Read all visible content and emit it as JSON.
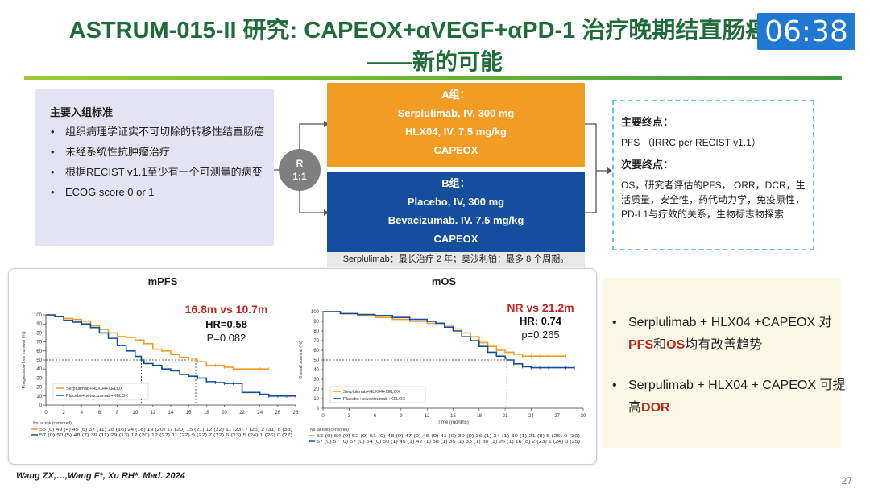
{
  "header": {
    "title_line1": "ASTRUM-015-II 研究: CAPEOX+αVEGF+αPD-1 治疗晚期结直肠癌",
    "title_line2": "——新的可能",
    "timer": "06:38"
  },
  "criteria": {
    "heading": "主要入组标准",
    "items": [
      "组织病理学证实不可切除的转移性结直肠癌",
      "未经系统性抗肿瘤治疗",
      "根据RECIST v1.1至少有一个可测量的病变",
      "ECOG score 0 or 1"
    ]
  },
  "randomization": {
    "line1": "R",
    "line2": "1:1"
  },
  "arm_a": {
    "title": "A组：",
    "lines": [
      "Serplulimab, IV, 300 mg",
      "HLX04, IV, 7.5 mg/kg",
      "CAPEOX"
    ]
  },
  "arm_b": {
    "title": "B组：",
    "lines": [
      "Placebo, IV, 300 mg",
      "Bevacizumab. IV. 7.5 mg/kg",
      "CAPEOX"
    ]
  },
  "arm_note": "Serplulimab：最长治疗 2 年；奥沙利铂：最多 8 个周期。",
  "endpoints": {
    "primary_heading": "主要终点：",
    "primary_text": "PFS （IRRC per RECIST v1.1）",
    "secondary_heading": "次要终点：",
    "secondary_text": "OS，研究者评估的PFS， ORR，DCR，生活质量，安全性，药代动力学，免疫原性，PD-L1与疗效的关系，生物标志物探索"
  },
  "summary": {
    "b1_text": "Serplulimab + HLX04 +CAPEOX 对",
    "b1_red1": "PFS",
    "b1_mid": "和",
    "b1_red2": "OS",
    "b1_tail": "均有改善趋势",
    "b2_text": "Serpulimab + HLX04 + CAPEOX 可提高",
    "b2_red": "DOR"
  },
  "citation": "Wang ZX,…,Wang F*, Xu RH*. Med. 2024",
  "page_number": "27",
  "colors": {
    "orange": "#f39c23",
    "blue": "#144e9c",
    "red": "#c0261f",
    "green": "#1f6b3a"
  },
  "chart_data": [
    {
      "type": "line",
      "title": "mPFS",
      "ylabel": "Progression-free survival (%)",
      "xlabel": "",
      "xlim": [
        0,
        28
      ],
      "ylim": [
        0,
        100
      ],
      "x_ticks": [
        0,
        2,
        4,
        6,
        8,
        10,
        12,
        14,
        16,
        18,
        20,
        22,
        24,
        26,
        28
      ],
      "y_ticks": [
        0,
        10,
        20,
        30,
        40,
        50,
        60,
        70,
        80,
        90,
        100
      ],
      "stats": {
        "headline": "16.8m vs 10.7m",
        "hr": "HR=0.58",
        "p": "P=0.082"
      },
      "median_line": {
        "y": 50,
        "x": [
          10.7,
          16.8
        ]
      },
      "series": [
        {
          "name": "Serplulimab+HLX04+XELOX",
          "color": "#f39c23",
          "x": [
            0,
            1,
            2,
            3,
            4,
            5,
            6,
            7,
            8,
            9,
            10,
            11,
            12,
            13,
            14,
            15,
            16,
            16.8,
            17,
            18,
            19,
            20,
            21,
            22,
            23,
            24,
            25
          ],
          "y": [
            100,
            98,
            96,
            95,
            93,
            88,
            84,
            80,
            76,
            75,
            72,
            68,
            62,
            60,
            56,
            53,
            52,
            50,
            48,
            44,
            44,
            42,
            40,
            40,
            40,
            40,
            40
          ]
        },
        {
          "name": "Placebo+bevacizumab+XELOX",
          "color": "#144e9c",
          "x": [
            0,
            1,
            2,
            3,
            4,
            5,
            6,
            7,
            8,
            9,
            10,
            10.7,
            11,
            12,
            13,
            14,
            15,
            16,
            17,
            18,
            19,
            20,
            21,
            22,
            23,
            24,
            25,
            26,
            27,
            28
          ],
          "y": [
            100,
            98,
            94,
            92,
            90,
            86,
            80,
            74,
            66,
            60,
            54,
            50,
            46,
            44,
            40,
            38,
            34,
            32,
            30,
            26,
            25,
            24,
            24,
            14,
            14,
            12,
            10,
            10,
            10,
            10
          ]
        }
      ],
      "risk_header": "No. at risk (censored)",
      "risk_rows": [
        "55 (0)  49 (4)  45 (6)  37 (11)  28 (16)  24 (18)  19 (20)  17 (20)  15 (21)  12 (22)  11 (23)  7 (26)  2 (31)  8 (33)",
        "57 (0)  50 (5)  48 (7)  39 (11)  29 (13)  17 (20)  12 (22)  11 (22)  9 (22)  7 (22)  6 (23)  5 (24)  1 (26)  0 (27)"
      ]
    },
    {
      "type": "line",
      "title": "mOS",
      "ylabel": "Overall survival (%)",
      "xlabel": "Time (months)",
      "xlim": [
        0,
        30
      ],
      "ylim": [
        0,
        100
      ],
      "x_ticks": [
        0,
        3,
        6,
        9,
        12,
        15,
        18,
        21,
        24,
        27,
        30
      ],
      "y_ticks": [
        0,
        10,
        20,
        30,
        40,
        50,
        60,
        70,
        80,
        90,
        100
      ],
      "stats": {
        "headline": "NR vs 21.2m",
        "hr": "HR: 0.74",
        "p": "p=0.265"
      },
      "median_line": {
        "y": 50,
        "x": [
          21.2
        ]
      },
      "series": [
        {
          "name": "Serplulimab+HLX04+XELOX",
          "color": "#f39c23",
          "x": [
            0,
            2,
            4,
            6,
            8,
            10,
            12,
            14,
            15,
            16,
            17,
            18,
            19,
            20,
            21,
            22,
            23,
            24,
            25,
            26,
            27,
            28
          ],
          "y": [
            100,
            98,
            96,
            94,
            92,
            90,
            88,
            86,
            82,
            78,
            74,
            68,
            64,
            60,
            58,
            56,
            54,
            54,
            54,
            54,
            54,
            54
          ]
        },
        {
          "name": "Placebo+bevacizumab+XELOX",
          "color": "#144e9c",
          "x": [
            0,
            2,
            4,
            6,
            8,
            10,
            12,
            13,
            14,
            15,
            16,
            17,
            18,
            19,
            20,
            21,
            21.2,
            22,
            23,
            24,
            25,
            26,
            27,
            28,
            29
          ],
          "y": [
            100,
            98,
            97,
            96,
            94,
            92,
            90,
            88,
            84,
            80,
            74,
            70,
            64,
            58,
            54,
            52,
            50,
            46,
            43,
            42,
            42,
            42,
            42,
            42,
            42
          ]
        }
      ],
      "risk_header": "No. at risk (censored)",
      "risk_rows": [
        "55 (0)  54 (0)  52 (0)  51 (0)  48 (0)  47 (0)  45 (0)  41 (0)  39 (0)  36 (1)  34 (1)  30 (1)  21 (8)  5 (25)  0 (30)",
        "57 (0)  57 (0)  57 (0)  54 (0)  50 (1)  45 (1)  42 (1)  38 (1)  35 (1)  33 (1)  30 (1)  26 (1)  16 (8)  2 (23)  1 (24)  0 (25)"
      ]
    }
  ]
}
